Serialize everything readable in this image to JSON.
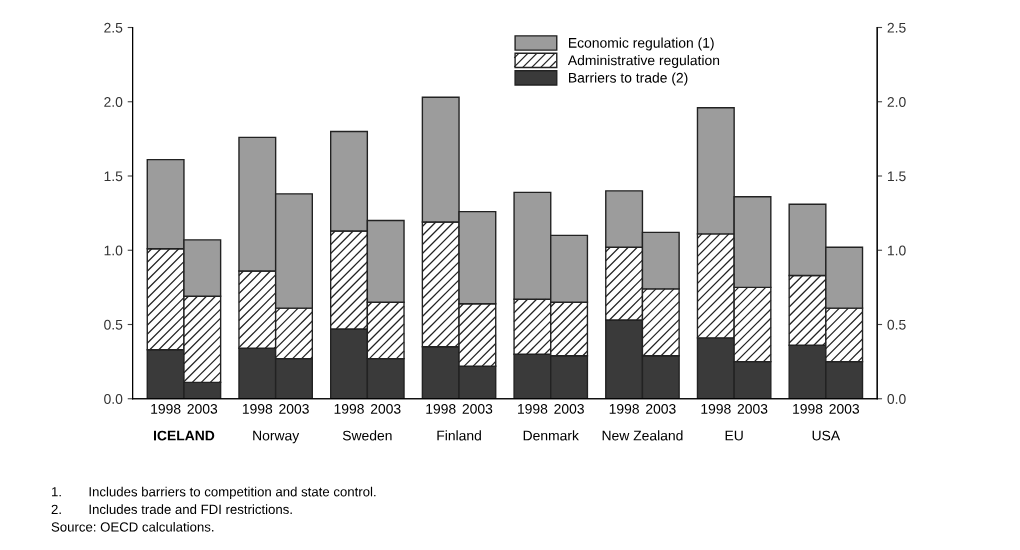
{
  "chart_data": {
    "type": "bar",
    "stacked": true,
    "categories": [
      "1998",
      "2003",
      "1998",
      "2003",
      "1998",
      "2003",
      "1998",
      "2003",
      "1998",
      "2003",
      "1998",
      "2003",
      "1998",
      "2003",
      "1998",
      "2003"
    ],
    "series": [
      {
        "name": "Barriers to trade (2)",
        "color": "#3a3a3a",
        "values": [
          0.33,
          0.11,
          0.34,
          0.27,
          0.47,
          0.27,
          0.35,
          0.22,
          0.3,
          0.29,
          0.53,
          0.29,
          0.41,
          0.25,
          0.36,
          0.25
        ]
      },
      {
        "name": "Administrative regulation",
        "color": "#ffffff",
        "values": [
          0.68,
          0.58,
          0.52,
          0.34,
          0.66,
          0.38,
          0.84,
          0.42,
          0.37,
          0.36,
          0.49,
          0.45,
          0.7,
          0.5,
          0.47,
          0.36
        ]
      },
      {
        "name": "Economic regulation (1)",
        "color": "#9c9c9c",
        "values": [
          0.6,
          0.38,
          0.9,
          0.77,
          0.67,
          0.55,
          0.84,
          0.62,
          0.72,
          0.45,
          0.38,
          0.38,
          0.85,
          0.61,
          0.48,
          0.41
        ]
      }
    ],
    "ylim": [
      0,
      2.5
    ],
    "yticks": [
      {
        "value": 0,
        "label": "0.0"
      },
      {
        "value": 0.5,
        "label": "0.5"
      },
      {
        "value": 1,
        "label": "1.0"
      },
      {
        "value": 1.5,
        "label": "1.5"
      },
      {
        "value": 2,
        "label": "2.0"
      },
      {
        "value": 2.5,
        "label": "2.5"
      }
    ],
    "y2lim": [
      0,
      2.5
    ],
    "y2ticks": [
      {
        "value": 0,
        "label": "0.0"
      },
      {
        "value": 0.5,
        "label": "0.5"
      },
      {
        "value": 1,
        "label": "1.0"
      },
      {
        "value": 1.5,
        "label": "1.5"
      },
      {
        "value": 2,
        "label": "2.0"
      },
      {
        "value": 2.5,
        "label": "2.5"
      }
    ],
    "legend": "top right",
    "grid": false,
    "annotations": [
      "ICELAND",
      "Norway",
      "Sweden",
      "Finland",
      "Denmark",
      "New Zealand",
      "EU",
      "USA",
      "1.  Includes barriers to competition and state control.",
      "2.  Includes trade and FDI restrictions.",
      "Source: OECD calculations."
    ]
  }
}
